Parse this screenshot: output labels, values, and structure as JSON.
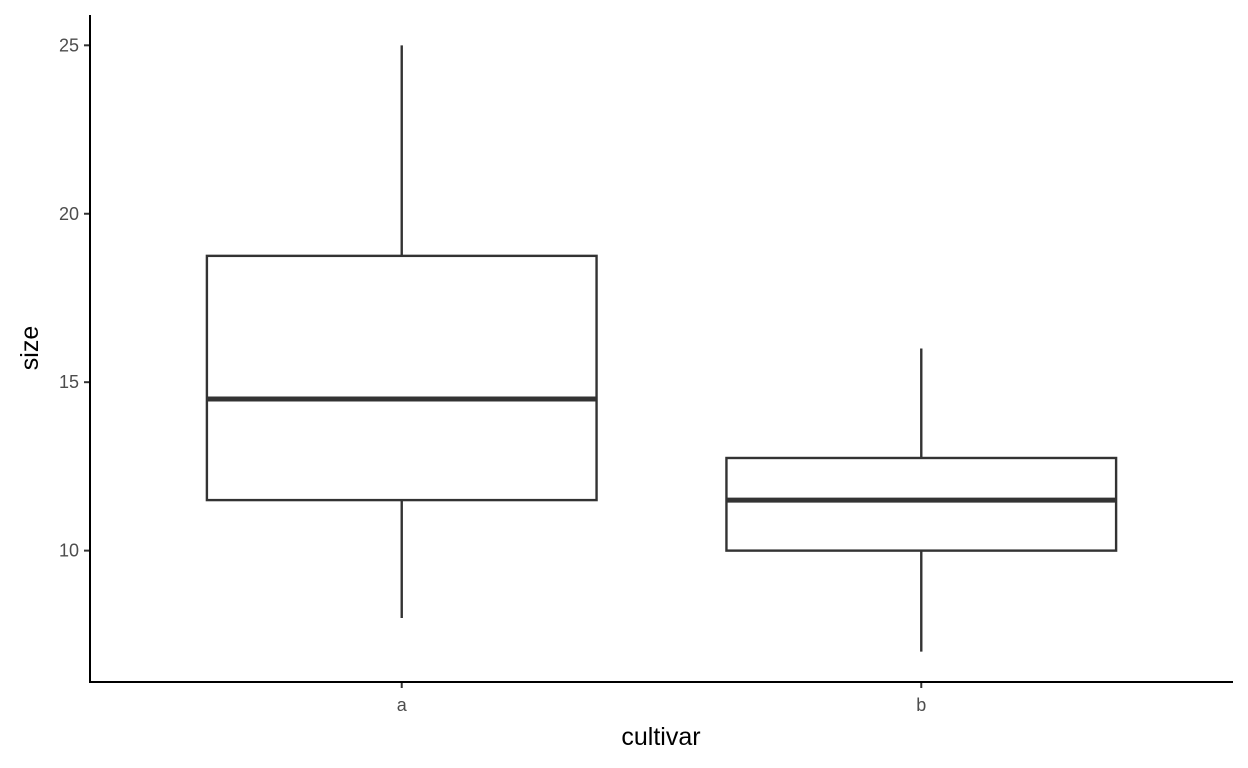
{
  "chart_data": {
    "type": "boxplot",
    "title": "",
    "xlabel": "cultivar",
    "ylabel": "size",
    "categories": [
      "a",
      "b"
    ],
    "boxes": [
      {
        "category": "a",
        "whisker_low": 8,
        "q1": 11.5,
        "median": 14.5,
        "q3": 18.75,
        "whisker_high": 25
      },
      {
        "category": "b",
        "whisker_low": 7,
        "q1": 10,
        "median": 11.5,
        "q3": 12.75,
        "whisker_high": 16
      }
    ],
    "y_ticks": [
      10,
      15,
      20,
      25
    ],
    "y_tick_labels": [
      "10",
      "15",
      "20",
      "25"
    ],
    "ylim": [
      6.1,
      25.9
    ],
    "grid": false,
    "legend": "none",
    "colors": {
      "box_line": "#333333",
      "axis": "#000000",
      "tick_label": "#4d4d4d",
      "fill": "#ffffff"
    }
  }
}
